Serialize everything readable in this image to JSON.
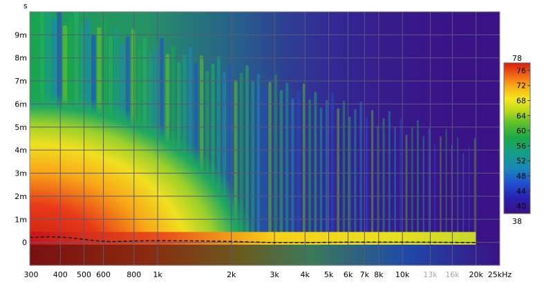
{
  "chart_data": {
    "type": "heatmap",
    "title": "",
    "ylabel": "s",
    "xlabel": "",
    "x_scale": "log",
    "xlim": [
      300,
      25000
    ],
    "ylim": [
      -0.001,
      0.01
    ],
    "x_ticks": [
      {
        "value": 300,
        "label": "300"
      },
      {
        "value": 400,
        "label": "400"
      },
      {
        "value": 500,
        "label": "500"
      },
      {
        "value": 600,
        "label": "600"
      },
      {
        "value": 800,
        "label": "800"
      },
      {
        "value": 1000,
        "label": "1k"
      },
      {
        "value": 2000,
        "label": "2k"
      },
      {
        "value": 3000,
        "label": "3k"
      },
      {
        "value": 4000,
        "label": "4k"
      },
      {
        "value": 5000,
        "label": "5k"
      },
      {
        "value": 6000,
        "label": "6k"
      },
      {
        "value": 7000,
        "label": "7k"
      },
      {
        "value": 8000,
        "label": "8k"
      },
      {
        "value": 10000,
        "label": "10k"
      },
      {
        "value": 13000,
        "label": "13k",
        "faint": true
      },
      {
        "value": 16000,
        "label": "16k",
        "faint": true
      },
      {
        "value": 20000,
        "label": "20k"
      },
      {
        "value": 25000,
        "label": "25kHz"
      }
    ],
    "y_ticks": [
      {
        "value": 0,
        "label": "0"
      },
      {
        "value": 0.001,
        "label": "1m"
      },
      {
        "value": 0.002,
        "label": "2m"
      },
      {
        "value": 0.003,
        "label": "3m"
      },
      {
        "value": 0.004,
        "label": "4m"
      },
      {
        "value": 0.005,
        "label": "5m"
      },
      {
        "value": 0.006,
        "label": "6m"
      },
      {
        "value": 0.007,
        "label": "7m"
      },
      {
        "value": 0.008,
        "label": "8m"
      },
      {
        "value": 0.009,
        "label": "9m"
      }
    ],
    "colorbar": {
      "min": 38,
      "max": 78,
      "min_label": "38",
      "max_label": "78",
      "ticks": [
        {
          "value": 40,
          "label": "40"
        },
        {
          "value": 44,
          "label": "44"
        },
        {
          "value": 48,
          "label": "48"
        },
        {
          "value": 52,
          "label": "52"
        },
        {
          "value": 56,
          "label": "56"
        },
        {
          "value": 60,
          "label": "60"
        },
        {
          "value": 64,
          "label": "64"
        },
        {
          "value": 68,
          "label": "68"
        },
        {
          "value": 72,
          "label": "72"
        },
        {
          "value": 76,
          "label": "76"
        }
      ],
      "colors": [
        "#3a1280",
        "#2a20b0",
        "#1f50d0",
        "#1a88b8",
        "#159e88",
        "#1aa84a",
        "#5cc02a",
        "#b8d81a",
        "#f6e81e",
        "#f8b018",
        "#f06416",
        "#d81c10"
      ]
    },
    "background_color": "#3a1285",
    "grid": true,
    "grid_color": "#5a5a78",
    "peak_line": {
      "style": "dashed",
      "color": "#1a1a1a",
      "points": [
        [
          300,
          0.00021
        ],
        [
          360,
          0.00024
        ],
        [
          430,
          0.00021
        ],
        [
          500,
          0.00013
        ],
        [
          570,
          6e-05
        ],
        [
          650,
          3e-05
        ],
        [
          750,
          5e-05
        ],
        [
          900,
          7e-05
        ],
        [
          1100,
          7e-05
        ],
        [
          1500,
          6e-05
        ],
        [
          2000,
          4e-05
        ],
        [
          2500,
          1e-05
        ],
        [
          3000,
          -1e-05
        ],
        [
          4000,
          -1e-05
        ],
        [
          6000,
          1e-05
        ],
        [
          10000,
          1e-05
        ],
        [
          15000,
          0.0
        ],
        [
          20000,
          -1e-05
        ]
      ]
    }
  }
}
